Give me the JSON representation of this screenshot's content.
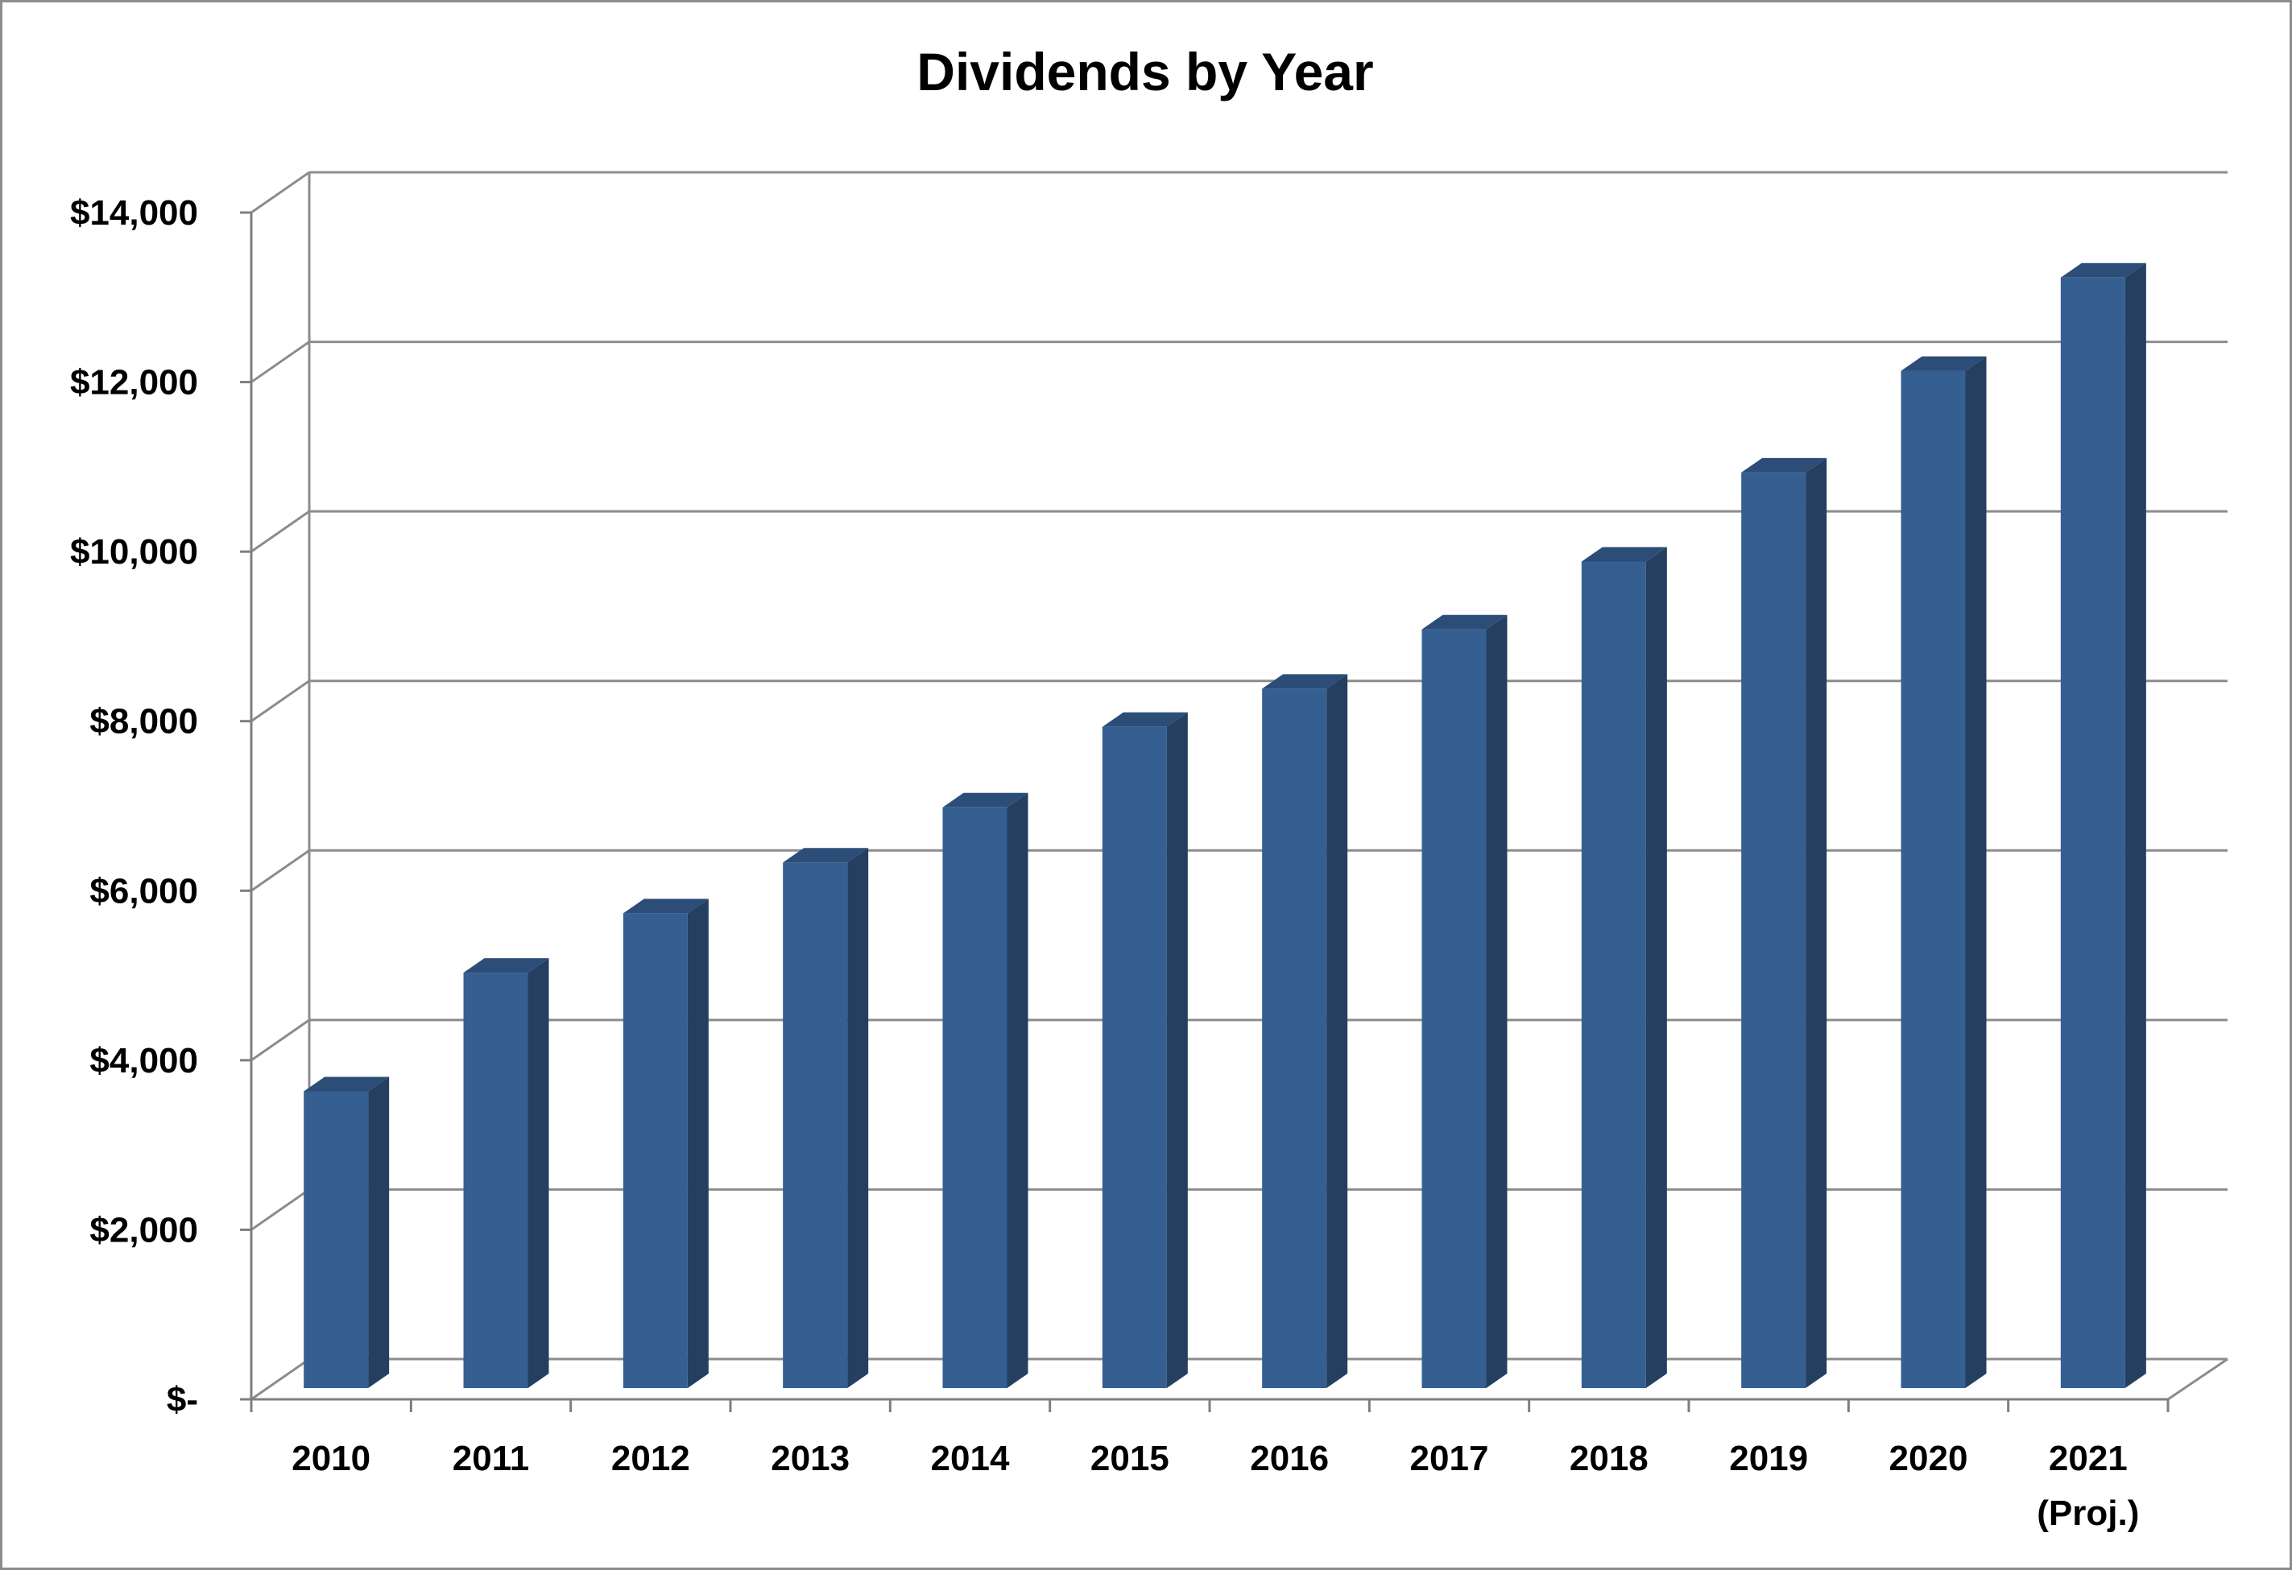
{
  "chart_data": {
    "type": "bar",
    "title": "Dividends by Year",
    "xlabel": "",
    "ylabel": "",
    "categories": [
      "2010",
      "2011",
      "2012",
      "2013",
      "2014",
      "2015",
      "2016",
      "2017",
      "2018",
      "2019",
      "2020",
      "2021"
    ],
    "category_sublabels": [
      "",
      "",
      "",
      "",
      "",
      "",
      "",
      "",
      "",
      "",
      "",
      "(Proj.)"
    ],
    "values": [
      3500,
      4900,
      5600,
      6200,
      6850,
      7800,
      8250,
      8950,
      9750,
      10800,
      12000,
      13100
    ],
    "ylim": [
      0,
      14000
    ],
    "yticks": [
      0,
      2000,
      4000,
      6000,
      8000,
      10000,
      12000,
      14000
    ],
    "ytick_labels": [
      "$-",
      "$2,000",
      "$4,000",
      "$6,000",
      "$8,000",
      "$10,000",
      "$12,000",
      "$14,000"
    ],
    "grid": true,
    "legend": "none",
    "style": "3d-column",
    "colors": {
      "bar_front": "#365F91",
      "bar_side": "#243F60",
      "bar_top": "#2C4D78",
      "grid": "#8C8C8C",
      "axis": "#7F7F7F"
    }
  }
}
